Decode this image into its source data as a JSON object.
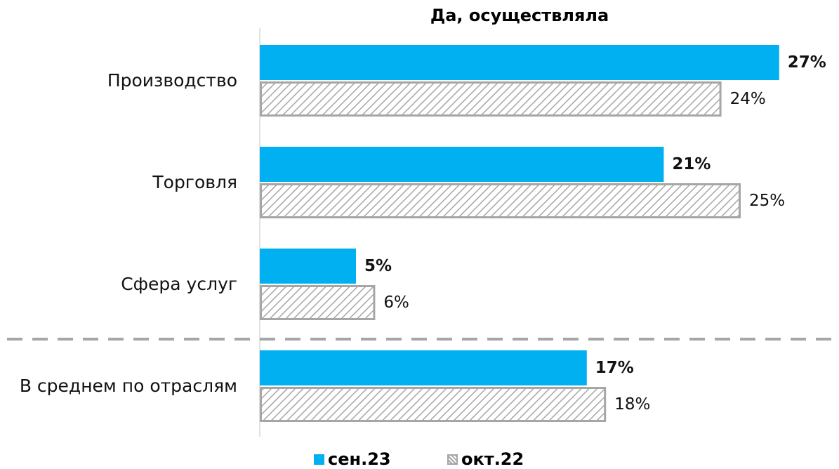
{
  "chart_data": {
    "type": "bar",
    "orientation": "horizontal",
    "title": "Да, осуществляла",
    "categories": [
      "Производство",
      "Торговля",
      "Сфера услуг",
      "В среднем по отраслям"
    ],
    "series": [
      {
        "name": "сен.23",
        "color": "#00b0f0",
        "pattern": "solid",
        "values": [
          27,
          21,
          5,
          17
        ],
        "value_labels": [
          "27%",
          "21%",
          "5%",
          "17%"
        ]
      },
      {
        "name": "окт.22",
        "color": "#a6a6a6",
        "pattern": "hatch",
        "values": [
          24,
          25,
          6,
          18
        ],
        "value_labels": [
          "24%",
          "25%",
          "6%",
          "18%"
        ]
      }
    ],
    "legend": "bottom"
  }
}
